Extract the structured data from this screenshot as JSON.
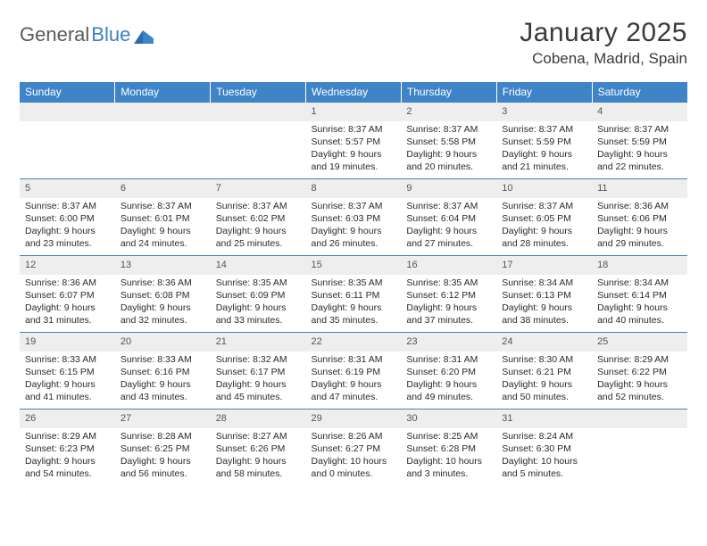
{
  "logo": {
    "part1": "General",
    "part2": "Blue"
  },
  "title": "January 2025",
  "location": "Cobena, Madrid, Spain",
  "colors": {
    "header_bg": "#3e84c6",
    "header_text": "#ffffff",
    "daynum_bg": "#eeeeee",
    "border": "#3e84c6",
    "text": "#2a2a2a"
  },
  "dayHeaders": [
    "Sunday",
    "Monday",
    "Tuesday",
    "Wednesday",
    "Thursday",
    "Friday",
    "Saturday"
  ],
  "weeks": [
    [
      null,
      null,
      null,
      {
        "n": "1",
        "sr": "8:37 AM",
        "ss": "5:57 PM",
        "dl": "9 hours and 19 minutes."
      },
      {
        "n": "2",
        "sr": "8:37 AM",
        "ss": "5:58 PM",
        "dl": "9 hours and 20 minutes."
      },
      {
        "n": "3",
        "sr": "8:37 AM",
        "ss": "5:59 PM",
        "dl": "9 hours and 21 minutes."
      },
      {
        "n": "4",
        "sr": "8:37 AM",
        "ss": "5:59 PM",
        "dl": "9 hours and 22 minutes."
      }
    ],
    [
      {
        "n": "5",
        "sr": "8:37 AM",
        "ss": "6:00 PM",
        "dl": "9 hours and 23 minutes."
      },
      {
        "n": "6",
        "sr": "8:37 AM",
        "ss": "6:01 PM",
        "dl": "9 hours and 24 minutes."
      },
      {
        "n": "7",
        "sr": "8:37 AM",
        "ss": "6:02 PM",
        "dl": "9 hours and 25 minutes."
      },
      {
        "n": "8",
        "sr": "8:37 AM",
        "ss": "6:03 PM",
        "dl": "9 hours and 26 minutes."
      },
      {
        "n": "9",
        "sr": "8:37 AM",
        "ss": "6:04 PM",
        "dl": "9 hours and 27 minutes."
      },
      {
        "n": "10",
        "sr": "8:37 AM",
        "ss": "6:05 PM",
        "dl": "9 hours and 28 minutes."
      },
      {
        "n": "11",
        "sr": "8:36 AM",
        "ss": "6:06 PM",
        "dl": "9 hours and 29 minutes."
      }
    ],
    [
      {
        "n": "12",
        "sr": "8:36 AM",
        "ss": "6:07 PM",
        "dl": "9 hours and 31 minutes."
      },
      {
        "n": "13",
        "sr": "8:36 AM",
        "ss": "6:08 PM",
        "dl": "9 hours and 32 minutes."
      },
      {
        "n": "14",
        "sr": "8:35 AM",
        "ss": "6:09 PM",
        "dl": "9 hours and 33 minutes."
      },
      {
        "n": "15",
        "sr": "8:35 AM",
        "ss": "6:11 PM",
        "dl": "9 hours and 35 minutes."
      },
      {
        "n": "16",
        "sr": "8:35 AM",
        "ss": "6:12 PM",
        "dl": "9 hours and 37 minutes."
      },
      {
        "n": "17",
        "sr": "8:34 AM",
        "ss": "6:13 PM",
        "dl": "9 hours and 38 minutes."
      },
      {
        "n": "18",
        "sr": "8:34 AM",
        "ss": "6:14 PM",
        "dl": "9 hours and 40 minutes."
      }
    ],
    [
      {
        "n": "19",
        "sr": "8:33 AM",
        "ss": "6:15 PM",
        "dl": "9 hours and 41 minutes."
      },
      {
        "n": "20",
        "sr": "8:33 AM",
        "ss": "6:16 PM",
        "dl": "9 hours and 43 minutes."
      },
      {
        "n": "21",
        "sr": "8:32 AM",
        "ss": "6:17 PM",
        "dl": "9 hours and 45 minutes."
      },
      {
        "n": "22",
        "sr": "8:31 AM",
        "ss": "6:19 PM",
        "dl": "9 hours and 47 minutes."
      },
      {
        "n": "23",
        "sr": "8:31 AM",
        "ss": "6:20 PM",
        "dl": "9 hours and 49 minutes."
      },
      {
        "n": "24",
        "sr": "8:30 AM",
        "ss": "6:21 PM",
        "dl": "9 hours and 50 minutes."
      },
      {
        "n": "25",
        "sr": "8:29 AM",
        "ss": "6:22 PM",
        "dl": "9 hours and 52 minutes."
      }
    ],
    [
      {
        "n": "26",
        "sr": "8:29 AM",
        "ss": "6:23 PM",
        "dl": "9 hours and 54 minutes."
      },
      {
        "n": "27",
        "sr": "8:28 AM",
        "ss": "6:25 PM",
        "dl": "9 hours and 56 minutes."
      },
      {
        "n": "28",
        "sr": "8:27 AM",
        "ss": "6:26 PM",
        "dl": "9 hours and 58 minutes."
      },
      {
        "n": "29",
        "sr": "8:26 AM",
        "ss": "6:27 PM",
        "dl": "10 hours and 0 minutes."
      },
      {
        "n": "30",
        "sr": "8:25 AM",
        "ss": "6:28 PM",
        "dl": "10 hours and 3 minutes."
      },
      {
        "n": "31",
        "sr": "8:24 AM",
        "ss": "6:30 PM",
        "dl": "10 hours and 5 minutes."
      },
      null
    ]
  ],
  "labels": {
    "sunrise": "Sunrise:",
    "sunset": "Sunset:",
    "daylight": "Daylight:"
  }
}
